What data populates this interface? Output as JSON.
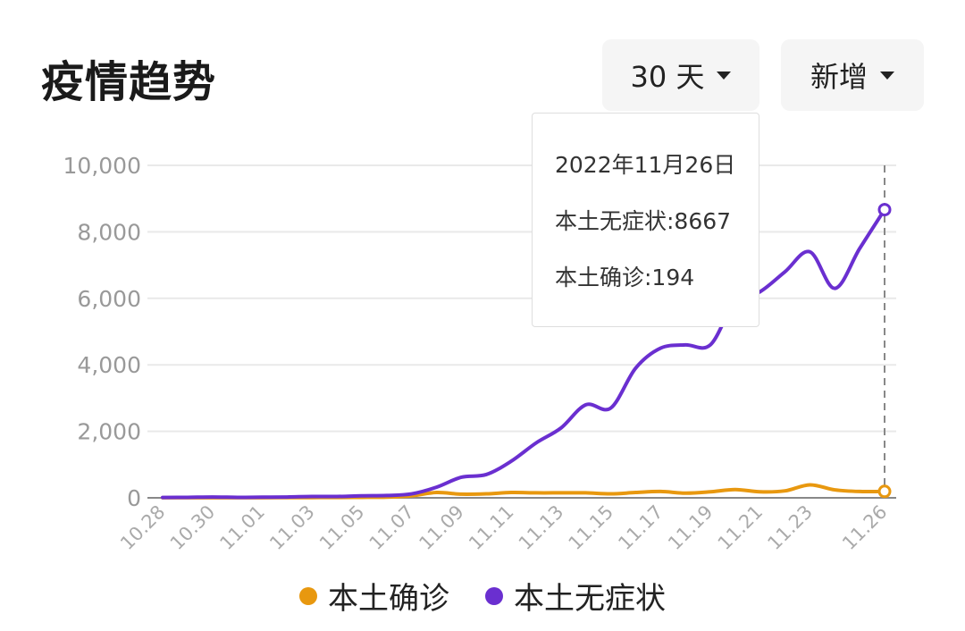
{
  "header": {
    "title": "疫情趋势",
    "range_label": "30 天",
    "mode_label": "新增"
  },
  "tooltip": {
    "date": "2022年11月26日",
    "line1": "本土无症状:8667",
    "line2": "本土确诊:194"
  },
  "legend": [
    {
      "label": "本土确诊",
      "color": "#E8980F"
    },
    {
      "label": "本土无症状",
      "color": "#6A2FD0"
    }
  ],
  "chart_data": {
    "type": "line",
    "x_tick_labels": [
      "10.28",
      "10.30",
      "11.01",
      "11.03",
      "11.05",
      "11.07",
      "11.09",
      "11.11",
      "11.13",
      "11.15",
      "11.17",
      "11.19",
      "11.21",
      "11.23",
      "11.26"
    ],
    "x": [
      "10.28",
      "10.29",
      "10.30",
      "10.31",
      "11.01",
      "11.02",
      "11.03",
      "11.04",
      "11.05",
      "11.06",
      "11.07",
      "11.08",
      "11.09",
      "11.10",
      "11.11",
      "11.12",
      "11.13",
      "11.14",
      "11.15",
      "11.16",
      "11.17",
      "11.18",
      "11.19",
      "11.20",
      "11.21",
      "11.22",
      "11.23",
      "11.24",
      "11.25",
      "11.26"
    ],
    "ylim": [
      0,
      10000
    ],
    "y_ticks": [
      "0",
      "2,000",
      "4,000",
      "6,000",
      "8,000",
      "10,000"
    ],
    "grid": true,
    "legend_position": "bottom",
    "series": [
      {
        "name": "本土确诊",
        "color": "#E8980F",
        "values": [
          2,
          3,
          4,
          5,
          4,
          6,
          8,
          10,
          15,
          20,
          60,
          160,
          110,
          120,
          160,
          150,
          150,
          150,
          120,
          160,
          190,
          140,
          180,
          250,
          180,
          210,
          390,
          240,
          190,
          194
        ]
      },
      {
        "name": "本土无症状",
        "color": "#6A2FD0",
        "values": [
          10,
          15,
          25,
          15,
          20,
          25,
          40,
          40,
          60,
          70,
          120,
          320,
          620,
          700,
          1100,
          1650,
          2100,
          2800,
          2700,
          3900,
          4500,
          4600,
          4600,
          5900,
          6200,
          6800,
          7400,
          6300,
          7500,
          8667
        ]
      }
    ],
    "highlight_index": 29
  }
}
